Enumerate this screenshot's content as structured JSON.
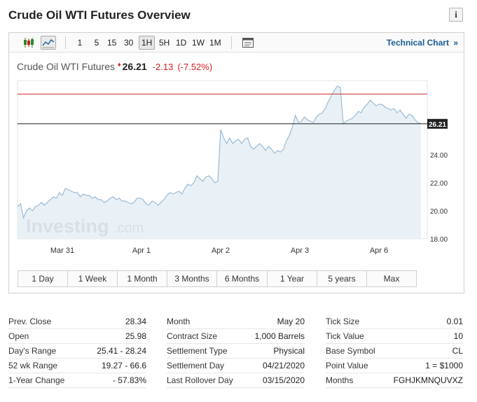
{
  "page": {
    "title": "Crude Oil WTI Futures Overview",
    "info_icon": "info-icon",
    "info_glyph": "i"
  },
  "toolbar": {
    "chart_type_icons": [
      "candlestick-icon",
      "line-chart-icon"
    ],
    "timeframes": [
      "1",
      "5",
      "15",
      "30",
      "1H",
      "5H",
      "1D",
      "1W",
      "1M"
    ],
    "selected_timeframe": "1H",
    "export_icon": "window-icon",
    "technical_link": "Technical Chart",
    "technical_link_arrow": "»"
  },
  "quote": {
    "name": "Crude Oil WTI Futures",
    "last": "26.21",
    "change": "-2.13",
    "change_pct": "(-7.52%)"
  },
  "chart_data": {
    "type": "area",
    "y_ticks": [
      "24.00",
      "22.00",
      "20.00",
      "18.00"
    ],
    "x_ticks": [
      "Mar 31",
      "Apr 1",
      "Apr 2",
      "Apr 3",
      "Apr 6"
    ],
    "last_value_label": "26.21",
    "reference_lines": [
      28.34,
      26.21
    ],
    "ylim": [
      18,
      29.3
    ],
    "y": [
      20.3,
      20.5,
      19.5,
      20.0,
      20.2,
      20.0,
      20.3,
      20.4,
      20.6,
      20.4,
      20.6,
      20.8,
      21.0,
      20.9,
      21.3,
      21.1,
      21.6,
      21.5,
      21.4,
      21.3,
      21.3,
      21.0,
      21.2,
      21.1,
      21.1,
      20.9,
      21.0,
      20.8,
      20.8,
      20.6,
      20.7,
      20.9,
      21.0,
      20.8,
      20.9,
      20.7,
      20.7,
      20.6,
      20.5,
      20.6,
      20.9,
      20.9,
      20.8,
      20.5,
      20.4,
      20.7,
      20.6,
      20.4,
      20.6,
      20.8,
      21.1,
      21.3,
      21.2,
      21.3,
      21.4,
      21.2,
      21.6,
      21.9,
      21.8,
      22.0,
      22.5,
      22.3,
      22.1,
      22.4,
      22.5,
      22.3,
      22.0,
      22.1,
      25.8,
      25.2,
      24.8,
      25.2,
      24.8,
      25.0,
      25.1,
      24.8,
      25.1,
      25.2,
      24.6,
      24.4,
      24.6,
      24.8,
      24.6,
      24.3,
      24.6,
      24.4,
      24.1,
      24.3,
      24.2,
      24.4,
      25.0,
      25.4,
      26.0,
      26.8,
      26.3,
      26.4,
      26.7,
      26.5,
      26.4,
      26.3,
      26.7,
      26.9,
      27.0,
      27.3,
      27.8,
      28.2,
      28.6,
      28.9,
      28.8,
      26.21,
      26.4,
      26.5,
      26.6,
      26.8,
      27.1,
      27.0,
      27.4,
      27.6,
      27.9,
      27.7,
      27.5,
      27.6,
      27.6,
      27.4,
      27.3,
      27.2,
      27.3,
      27.0,
      27.2,
      26.9,
      26.6,
      26.9,
      26.8,
      26.5,
      26.3,
      26.21
    ],
    "colors": {
      "line": "#9cbad4",
      "fill": "#e5eef5",
      "ref_high": "#c9282d",
      "ref_last": "#222222",
      "label_bg": "#222222"
    },
    "watermark": "Investing.com"
  },
  "range_buttons": [
    "1 Day",
    "1 Week",
    "1 Month",
    "3 Months",
    "6 Months",
    "1 Year",
    "5 years",
    "Max"
  ],
  "stats": {
    "col1": [
      {
        "label": "Prev. Close",
        "value": "28.34"
      },
      {
        "label": "Open",
        "value": "25.98"
      },
      {
        "label": "Day's Range",
        "value": "25.41 - 28.24"
      },
      {
        "label": "52 wk Range",
        "value": "19.27 - 66.6"
      },
      {
        "label": "1-Year Change",
        "value": "- 57.83%"
      }
    ],
    "col2": [
      {
        "label": "Month",
        "value": "May 20"
      },
      {
        "label": "Contract Size",
        "value": "1,000 Barrels"
      },
      {
        "label": "Settlement Type",
        "value": "Physical"
      },
      {
        "label": "Settlement Day",
        "value": "04/21/2020"
      },
      {
        "label": "Last Rollover Day",
        "value": "03/15/2020"
      }
    ],
    "col3": [
      {
        "label": "Tick Size",
        "value": "0.01"
      },
      {
        "label": "Tick Value",
        "value": "10"
      },
      {
        "label": "Base Symbol",
        "value": "CL"
      },
      {
        "label": "Point Value",
        "value": "1 = $1000"
      },
      {
        "label": "Months",
        "value": "FGHJKMNQUVXZ"
      }
    ]
  }
}
